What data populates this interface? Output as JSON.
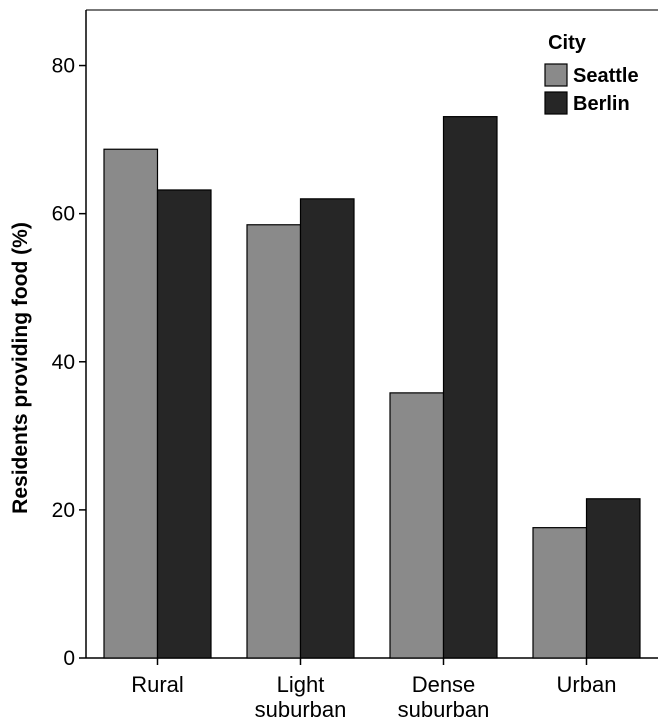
{
  "chart_data": {
    "type": "bar",
    "categories": [
      [
        "Rural"
      ],
      [
        "Light",
        "suburban"
      ],
      [
        "Dense",
        "suburban"
      ],
      [
        "Urban"
      ]
    ],
    "series": [
      {
        "name": "Seattle",
        "values": [
          68.7,
          58.5,
          35.8,
          17.6
        ],
        "color": "#8a8a8a"
      },
      {
        "name": "Berlin",
        "values": [
          63.2,
          62.0,
          73.1,
          21.5
        ],
        "color": "#262626"
      }
    ],
    "title": "",
    "xlabel": "",
    "ylabel": "Residents providing food (%)",
    "ylim": [
      0,
      87.5
    ],
    "yticks": [
      0,
      20,
      40,
      60,
      80
    ],
    "legend": {
      "title": "City",
      "position": "top-right"
    },
    "grid": false
  }
}
